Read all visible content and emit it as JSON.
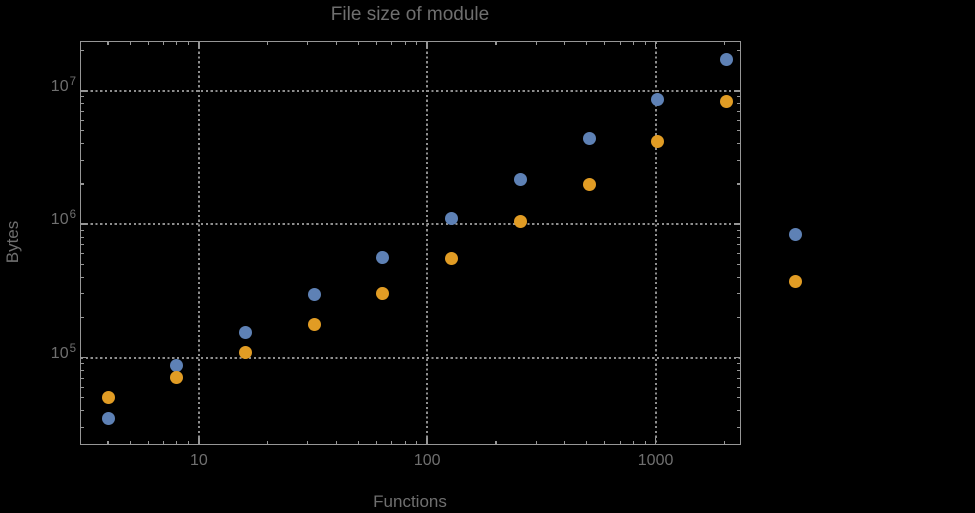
{
  "window": {
    "background_color": "#000000"
  },
  "chart_data": {
    "type": "scatter",
    "title": "File size of module",
    "xlabel": "Functions",
    "ylabel": "Bytes",
    "x_scale": "log",
    "y_scale": "log",
    "xlim": [
      3.03,
      2343
    ],
    "ylim": [
      22500,
      23400000
    ],
    "grid": true,
    "grid_style": "dotted",
    "legend": "none",
    "x": [
      4,
      8,
      16,
      32,
      64,
      128,
      256,
      512,
      1024,
      2048,
      4096
    ],
    "series": [
      {
        "name": "series-1-blue",
        "color": "#5e81b5",
        "values": [
          35000,
          87000,
          155000,
          298000,
          560000,
          1110000,
          2150000,
          4400000,
          8600000,
          17200000,
          840000
        ]
      },
      {
        "name": "series-2-orange",
        "color": "#e19c24",
        "values": [
          50000,
          71000,
          109000,
          177000,
          300000,
          550000,
          1040000,
          2000000,
          4200000,
          8300000,
          370000
        ]
      }
    ],
    "x_ticks": [
      {
        "value": 10,
        "label": "10"
      },
      {
        "value": 100,
        "label": "100"
      },
      {
        "value": 1000,
        "label": "1000"
      }
    ],
    "y_ticks": [
      {
        "value": 100000,
        "base": "10",
        "exponent": "5"
      },
      {
        "value": 1000000,
        "base": "10",
        "exponent": "6"
      },
      {
        "value": 10000000,
        "base": "10",
        "exponent": "7"
      }
    ]
  },
  "style": {
    "frame_color": "#969696",
    "grid_color": "#8e8e8e",
    "text_color": "#6f6f6f",
    "point_diameter": 13
  }
}
